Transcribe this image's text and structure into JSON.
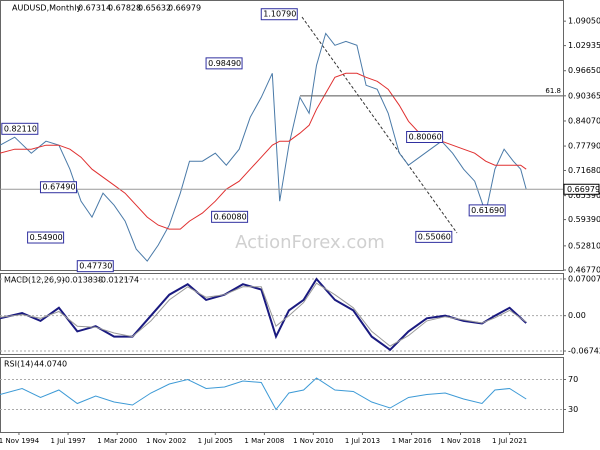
{
  "chart_data": {
    "type": "line",
    "symbol": "AUDUSD,Monthly",
    "ohlc": [
      0.67314,
      0.67828,
      0.65632,
      0.66979
    ],
    "watermark": "ActionForex.com",
    "xlim": [
      1993.8,
      2024.4
    ],
    "xticks": [
      {
        "value": 1994.83,
        "label": "1 Nov 1994"
      },
      {
        "value": 1997.5,
        "label": "1 Jul 1997"
      },
      {
        "value": 2000.17,
        "label": "1 Mar 2000"
      },
      {
        "value": 2002.83,
        "label": "1 Nov 2002"
      },
      {
        "value": 2005.5,
        "label": "1 Jul 2005"
      },
      {
        "value": 2008.17,
        "label": "1 Mar 2008"
      },
      {
        "value": 2010.83,
        "label": "1 Nov 2010"
      },
      {
        "value": 2013.5,
        "label": "1 Jul 2013"
      },
      {
        "value": 2016.17,
        "label": "1 Mar 2016"
      },
      {
        "value": 2018.83,
        "label": "1 Nov 2018"
      },
      {
        "value": 2021.5,
        "label": "1 Jul 2021"
      }
    ],
    "ylim": [
      0.4677,
      1.1435
    ],
    "yticks": [
      {
        "value": 0.4677,
        "label": "0.46770"
      },
      {
        "value": 0.5281,
        "label": "0.52810"
      },
      {
        "value": 0.5939,
        "label": "0.59390"
      },
      {
        "value": 0.6539,
        "label": "0.65390"
      },
      {
        "value": 0.7168,
        "label": "0.71680"
      },
      {
        "value": 0.7779,
        "label": "0.77790"
      },
      {
        "value": 0.8407,
        "label": "0.84070"
      },
      0.90365,
      {
        "value": 0.9665,
        "label": "0.96650"
      },
      1.02935,
      {
        "value": 1.0905,
        "label": "1.09050"
      }
    ],
    "x": [
      1993.8,
      1994.6,
      1995.5,
      1996.3,
      1997.0,
      1997.6,
      1998.2,
      1998.8,
      1999.4,
      2000.0,
      2000.6,
      2001.2,
      2001.8,
      2002.4,
      2003.0,
      2003.6,
      2004.1,
      2004.8,
      2005.5,
      2006.1,
      2006.8,
      2007.4,
      2008.0,
      2008.6,
      2009.0,
      2009.5,
      2010.1,
      2010.6,
      2011.0,
      2011.5,
      2012.0,
      2012.6,
      2013.2,
      2013.7,
      2014.3,
      2014.9,
      2015.5,
      2016.0,
      2016.6,
      2017.2,
      2017.8,
      2018.4,
      2019.0,
      2019.6,
      2020.2,
      2020.7,
      2021.2,
      2021.7,
      2022.1,
      2022.4
    ],
    "series": [
      {
        "name": "AUDUSD",
        "color": "#4a7aa8",
        "values": [
          0.78,
          0.8,
          0.76,
          0.79,
          0.78,
          0.72,
          0.64,
          0.6,
          0.66,
          0.63,
          0.59,
          0.52,
          0.49,
          0.53,
          0.58,
          0.66,
          0.74,
          0.74,
          0.76,
          0.73,
          0.77,
          0.85,
          0.9,
          0.96,
          0.64,
          0.78,
          0.9,
          0.86,
          0.98,
          1.06,
          1.03,
          1.04,
          1.03,
          0.93,
          0.92,
          0.86,
          0.76,
          0.73,
          0.75,
          0.77,
          0.79,
          0.76,
          0.72,
          0.69,
          0.61,
          0.72,
          0.77,
          0.74,
          0.72,
          0.67
        ]
      },
      {
        "name": "SMA",
        "color": "#e03030",
        "values": [
          0.76,
          0.77,
          0.77,
          0.78,
          0.78,
          0.77,
          0.75,
          0.72,
          0.7,
          0.68,
          0.66,
          0.63,
          0.6,
          0.58,
          0.57,
          0.57,
          0.59,
          0.61,
          0.64,
          0.67,
          0.69,
          0.72,
          0.75,
          0.78,
          0.79,
          0.79,
          0.81,
          0.83,
          0.87,
          0.91,
          0.95,
          0.96,
          0.96,
          0.95,
          0.94,
          0.92,
          0.88,
          0.84,
          0.81,
          0.8,
          0.79,
          0.78,
          0.77,
          0.76,
          0.74,
          0.73,
          0.73,
          0.73,
          0.73,
          0.72
        ]
      }
    ],
    "annotations": [
      {
        "x": 1993.9,
        "value": 0.8211,
        "label": "0.82110"
      },
      {
        "x": 1996.0,
        "value": 0.6749,
        "label": "0.67490"
      },
      {
        "x": 1995.3,
        "value": 0.549,
        "label": "0.54900"
      },
      {
        "x": 1998.0,
        "value": 0.4773,
        "label": "0.47730"
      },
      {
        "x": 2005.3,
        "value": 0.6008,
        "label": "0.60080"
      },
      {
        "x": 2005.0,
        "value": 0.9849,
        "label": "0.98490"
      },
      {
        "x": 2008.0,
        "value": 1.1079,
        "label": "1.10790"
      },
      {
        "x": 2015.9,
        "value": 0.8006,
        "label": "0.80060"
      },
      {
        "x": 2016.4,
        "value": 0.5506,
        "label": "0.55060"
      },
      {
        "x": 2019.3,
        "value": 0.6169,
        "label": "0.61690"
      }
    ],
    "fib_label": "61.8",
    "fib_level": 0.90365,
    "last_price": {
      "value": 0.66979
    },
    "macd": {
      "title": "MACD(12,26,9)",
      "readings": [
        -0.013838,
        -0.012174
      ],
      "ylim": [
        -0.0731,
        0.0814
      ],
      "yticks": [
        0.070071,
        {
          "value": 0,
          "label": "0.00"
        },
        -0.067423
      ],
      "x": [
        1993.8,
        1995,
        1996,
        1997,
        1998,
        1999,
        2000,
        2001,
        2002,
        2003,
        2004,
        2005,
        2006,
        2007,
        2008,
        2008.8,
        2009.5,
        2010.3,
        2011,
        2012,
        2013,
        2014,
        2015,
        2016,
        2017,
        2018,
        2019,
        2020,
        2020.7,
        2021.5,
        2022.4
      ],
      "series": [
        {
          "name": "MACD",
          "color": "#1a1a80",
          "values": [
            -0.005,
            0.005,
            -0.01,
            0.015,
            -0.03,
            -0.02,
            -0.04,
            -0.04,
            0.0,
            0.04,
            0.06,
            0.03,
            0.04,
            0.06,
            0.05,
            -0.04,
            0.01,
            0.03,
            0.07,
            0.03,
            0.01,
            -0.04,
            -0.065,
            -0.03,
            -0.005,
            0.0,
            -0.01,
            -0.015,
            0.0,
            0.015,
            -0.014
          ]
        },
        {
          "name": "Signal",
          "color": "#999999",
          "values": [
            -0.003,
            0.002,
            -0.005,
            0.008,
            -0.02,
            -0.022,
            -0.033,
            -0.04,
            -0.01,
            0.03,
            0.055,
            0.035,
            0.04,
            0.055,
            0.055,
            -0.02,
            0.0,
            0.025,
            0.062,
            0.04,
            0.015,
            -0.03,
            -0.058,
            -0.038,
            -0.01,
            -0.002,
            -0.008,
            -0.014,
            -0.004,
            0.01,
            -0.012
          ]
        }
      ]
    },
    "rsi": {
      "title": "RSI(14)",
      "reading": "44.0740",
      "ylim": [
        0,
        100
      ],
      "yticks": [
        70,
        30
      ],
      "x": [
        1993.8,
        1995,
        1996,
        1997,
        1998,
        1999,
        2000,
        2001,
        2002,
        2003,
        2004,
        2005,
        2006,
        2007,
        2008,
        2008.8,
        2009.5,
        2010.3,
        2011,
        2012,
        2013,
        2014,
        2015,
        2016,
        2017,
        2018,
        2019,
        2020,
        2020.7,
        2021.5,
        2022.4
      ],
      "series": [
        {
          "name": "RSI",
          "color": "#3d9ad6",
          "values": [
            50,
            58,
            46,
            56,
            38,
            48,
            40,
            36,
            52,
            64,
            70,
            58,
            60,
            68,
            66,
            30,
            52,
            56,
            72,
            56,
            54,
            40,
            32,
            46,
            50,
            52,
            44,
            38,
            56,
            58,
            44
          ]
        }
      ]
    }
  }
}
